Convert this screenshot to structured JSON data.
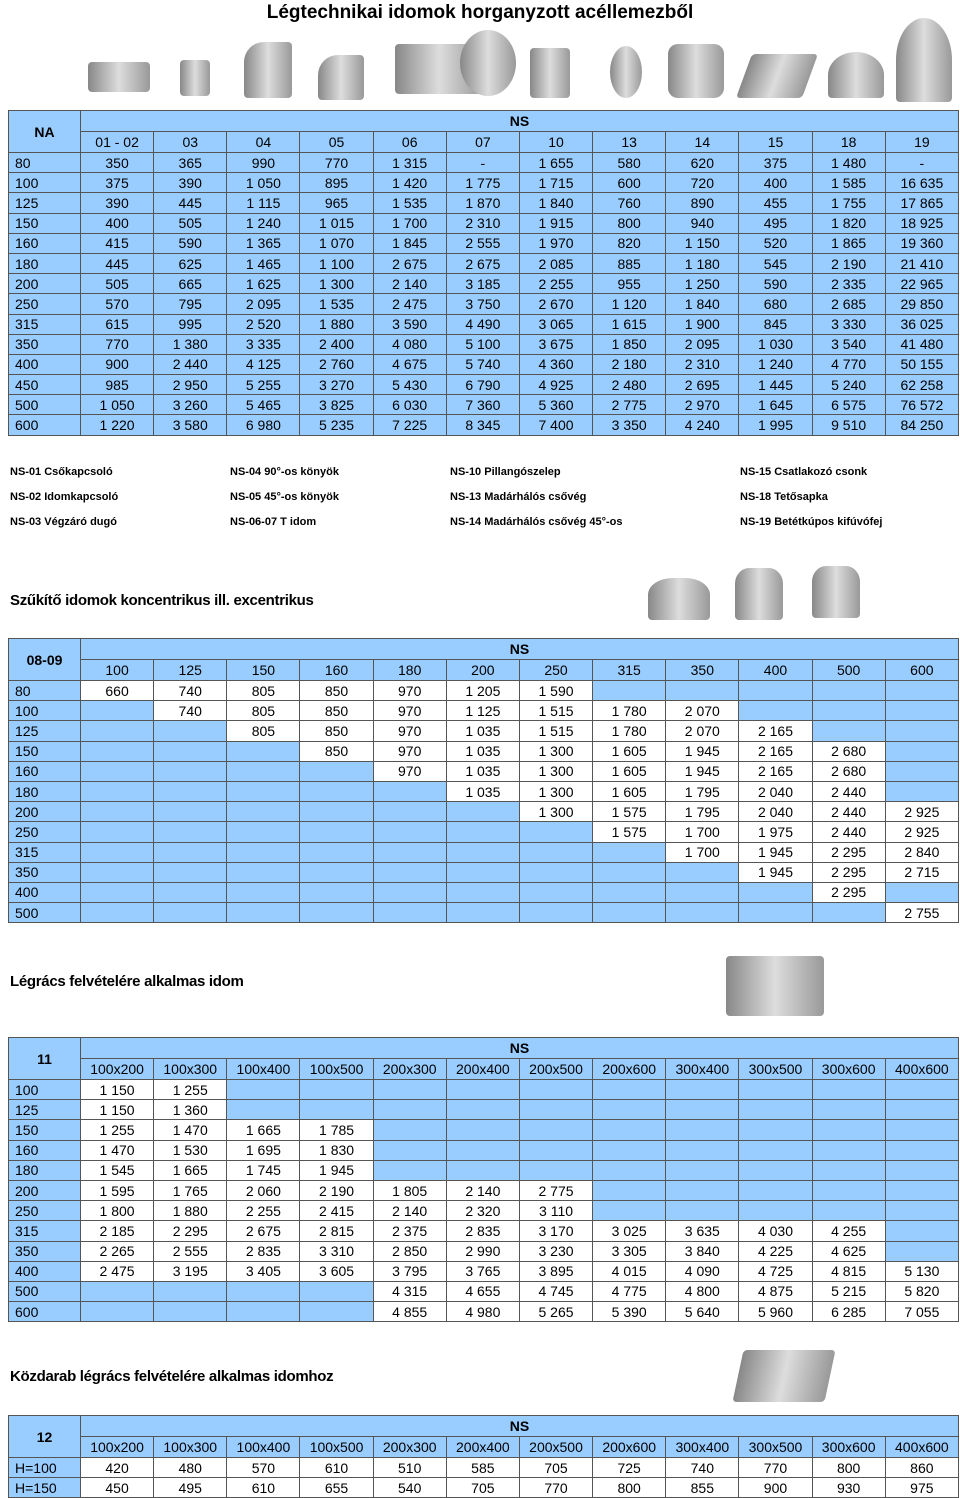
{
  "title": "Légtechnikai idomok horganyzott acéllemezből",
  "legend": [
    "NS-01 Csőkapcsoló",
    "NS-02 Idomkapcsoló",
    "NS-03 Végzáró dugó",
    "NS-04 90°-os könyök",
    "NS-05 45°-os könyök",
    "NS-06-07 T idom",
    "NS-10 Pillangószelep",
    "NS-13 Madárhálós csővég",
    "NS-14 Madárhálós csővég 45°-os",
    "NS-15 Csatlakozó csonk",
    "NS-18 Tetősapka",
    "NS-19 Betétkúpos kifúvófej"
  ],
  "sections": [
    "Szűkítő idomok koncentrikus ill. excentrikus",
    "Légrács felvételére alkalmas idom",
    "Közdarab légrács felvételére alkalmas idomhoz"
  ],
  "tables": [
    {
      "corner": "NA",
      "group": "NS",
      "columns": [
        "01 - 02",
        "03",
        "04",
        "05",
        "06",
        "07",
        "10",
        "13",
        "14",
        "15",
        "18",
        "19"
      ],
      "rows": [
        {
          "label": "80",
          "cells": [
            "350",
            "365",
            "990",
            "770",
            "1 315",
            "-",
            "1 655",
            "580",
            "620",
            "375",
            "1 480",
            "-"
          ]
        },
        {
          "label": "100",
          "cells": [
            "375",
            "390",
            "1 050",
            "895",
            "1 420",
            "1 775",
            "1 715",
            "600",
            "720",
            "400",
            "1 585",
            "16 635"
          ]
        },
        {
          "label": "125",
          "cells": [
            "390",
            "445",
            "1 115",
            "965",
            "1 535",
            "1 870",
            "1 840",
            "760",
            "890",
            "455",
            "1 755",
            "17 865"
          ]
        },
        {
          "label": "150",
          "cells": [
            "400",
            "505",
            "1 240",
            "1 015",
            "1 700",
            "2 310",
            "1 915",
            "800",
            "940",
            "495",
            "1 820",
            "18 925"
          ]
        },
        {
          "label": "160",
          "cells": [
            "415",
            "590",
            "1 365",
            "1 070",
            "1 845",
            "2 555",
            "1 970",
            "820",
            "1 150",
            "520",
            "1 865",
            "19 360"
          ]
        },
        {
          "label": "180",
          "cells": [
            "445",
            "625",
            "1 465",
            "1 100",
            "2 675",
            "2 675",
            "2 085",
            "885",
            "1 180",
            "545",
            "2 190",
            "21 410"
          ]
        },
        {
          "label": "200",
          "cells": [
            "505",
            "665",
            "1 625",
            "1 300",
            "2 140",
            "3 185",
            "2 255",
            "955",
            "1 250",
            "590",
            "2 335",
            "22 965"
          ]
        },
        {
          "label": "250",
          "cells": [
            "570",
            "795",
            "2 095",
            "1 535",
            "2 475",
            "3 750",
            "2 670",
            "1 120",
            "1 840",
            "680",
            "2 685",
            "29 850"
          ]
        },
        {
          "label": "315",
          "cells": [
            "615",
            "995",
            "2 520",
            "1 880",
            "3 590",
            "4 490",
            "3 065",
            "1 615",
            "1 900",
            "845",
            "3 330",
            "36 025"
          ]
        },
        {
          "label": "350",
          "cells": [
            "770",
            "1 380",
            "3 335",
            "2 400",
            "4 080",
            "5 100",
            "3 675",
            "1 850",
            "2 095",
            "1 030",
            "3 540",
            "41 480"
          ]
        },
        {
          "label": "400",
          "cells": [
            "900",
            "2 440",
            "4 125",
            "2 760",
            "4 675",
            "5 740",
            "4 360",
            "2 180",
            "2 310",
            "1 240",
            "4 770",
            "50 155"
          ]
        },
        {
          "label": "450",
          "cells": [
            "985",
            "2 950",
            "5 255",
            "3 270",
            "5 430",
            "6 790",
            "4 925",
            "2 480",
            "2 695",
            "1 445",
            "5 240",
            "62 258"
          ]
        },
        {
          "label": "500",
          "cells": [
            "1 050",
            "3 260",
            "5 465",
            "3 825",
            "6 030",
            "7 360",
            "5 360",
            "2 775",
            "2 970",
            "1 645",
            "6 575",
            "76 572"
          ]
        },
        {
          "label": "600",
          "cells": [
            "1 220",
            "3 580",
            "6 980",
            "5 235",
            "7 225",
            "8 345",
            "7 400",
            "3 350",
            "4 240",
            "1 995",
            "9 510",
            "84 250"
          ]
        }
      ]
    },
    {
      "corner": "08-09",
      "group": "NS",
      "columns": [
        "100",
        "125",
        "150",
        "160",
        "180",
        "200",
        "250",
        "315",
        "350",
        "400",
        "500",
        "600"
      ],
      "rows": [
        {
          "label": "80",
          "cells": [
            "660",
            "740",
            "805",
            "850",
            "970",
            "1 205",
            "1 590",
            null,
            null,
            null,
            null,
            null
          ]
        },
        {
          "label": "100",
          "cells": [
            null,
            "740",
            "805",
            "850",
            "970",
            "1 125",
            "1 515",
            "1 780",
            "2 070",
            null,
            null,
            null
          ]
        },
        {
          "label": "125",
          "cells": [
            null,
            null,
            "805",
            "850",
            "970",
            "1 035",
            "1 515",
            "1 780",
            "2 070",
            "2 165",
            null,
            null
          ]
        },
        {
          "label": "150",
          "cells": [
            null,
            null,
            null,
            "850",
            "970",
            "1 035",
            "1 300",
            "1 605",
            "1 945",
            "2 165",
            "2 680",
            null
          ]
        },
        {
          "label": "160",
          "cells": [
            null,
            null,
            null,
            null,
            "970",
            "1 035",
            "1 300",
            "1 605",
            "1 945",
            "2 165",
            "2 680",
            null
          ]
        },
        {
          "label": "180",
          "cells": [
            null,
            null,
            null,
            null,
            null,
            "1 035",
            "1 300",
            "1 605",
            "1 795",
            "2 040",
            "2 440",
            null
          ]
        },
        {
          "label": "200",
          "cells": [
            null,
            null,
            null,
            null,
            null,
            null,
            "1 300",
            "1 575",
            "1 795",
            "2 040",
            "2 440",
            "2 925"
          ]
        },
        {
          "label": "250",
          "cells": [
            null,
            null,
            null,
            null,
            null,
            null,
            null,
            "1 575",
            "1 700",
            "1 975",
            "2 440",
            "2 925"
          ]
        },
        {
          "label": "315",
          "cells": [
            null,
            null,
            null,
            null,
            null,
            null,
            null,
            null,
            "1 700",
            "1 945",
            "2 295",
            "2 840"
          ]
        },
        {
          "label": "350",
          "cells": [
            null,
            null,
            null,
            null,
            null,
            null,
            null,
            null,
            null,
            "1 945",
            "2 295",
            "2 715"
          ]
        },
        {
          "label": "400",
          "cells": [
            null,
            null,
            null,
            null,
            null,
            null,
            null,
            null,
            null,
            null,
            "2 295",
            null
          ]
        },
        {
          "label": "500",
          "cells": [
            null,
            null,
            null,
            null,
            null,
            null,
            null,
            null,
            null,
            null,
            null,
            "2 755"
          ]
        }
      ]
    },
    {
      "corner": "11",
      "group": "NS",
      "columns": [
        "100x200",
        "100x300",
        "100x400",
        "100x500",
        "200x300",
        "200x400",
        "200x500",
        "200x600",
        "300x400",
        "300x500",
        "300x600",
        "400x600"
      ],
      "rows": [
        {
          "label": "100",
          "cells": [
            "1 150",
            "1 255",
            null,
            null,
            null,
            null,
            null,
            null,
            null,
            null,
            null,
            null
          ]
        },
        {
          "label": "125",
          "cells": [
            "1 150",
            "1 360",
            null,
            null,
            null,
            null,
            null,
            null,
            null,
            null,
            null,
            null
          ]
        },
        {
          "label": "150",
          "cells": [
            "1 255",
            "1 470",
            "1 665",
            "1 785",
            null,
            null,
            null,
            null,
            null,
            null,
            null,
            null
          ]
        },
        {
          "label": "160",
          "cells": [
            "1 470",
            "1 530",
            "1 695",
            "1 830",
            null,
            null,
            null,
            null,
            null,
            null,
            null,
            null
          ]
        },
        {
          "label": "180",
          "cells": [
            "1 545",
            "1 665",
            "1 745",
            "1 945",
            null,
            null,
            null,
            null,
            null,
            null,
            null,
            null
          ]
        },
        {
          "label": "200",
          "cells": [
            "1 595",
            "1 765",
            "2 060",
            "2 190",
            "1 805",
            "2 140",
            "2 775",
            null,
            null,
            null,
            null,
            null
          ]
        },
        {
          "label": "250",
          "cells": [
            "1 800",
            "1 880",
            "2 255",
            "2 415",
            "2 140",
            "2 320",
            "3 110",
            null,
            null,
            null,
            null,
            null
          ]
        },
        {
          "label": "315",
          "cells": [
            "2 185",
            "2 295",
            "2 675",
            "2 815",
            "2 375",
            "2 835",
            "3 170",
            "3 025",
            "3 635",
            "4 030",
            "4 255",
            null
          ]
        },
        {
          "label": "350",
          "cells": [
            "2 265",
            "2 555",
            "2 835",
            "3 310",
            "2 850",
            "2 990",
            "3 230",
            "3 305",
            "3 840",
            "4 225",
            "4 625",
            null
          ]
        },
        {
          "label": "400",
          "cells": [
            "2 475",
            "3 195",
            "3 405",
            "3 605",
            "3 795",
            "3 765",
            "3 895",
            "4 015",
            "4 090",
            "4 725",
            "4 815",
            "5 130"
          ]
        },
        {
          "label": "500",
          "cells": [
            null,
            null,
            null,
            null,
            "4 315",
            "4 655",
            "4 745",
            "4 775",
            "4 800",
            "4 875",
            "5 215",
            "5 820"
          ]
        },
        {
          "label": "600",
          "cells": [
            null,
            null,
            null,
            null,
            "4 855",
            "4 980",
            "5 265",
            "5 390",
            "5 640",
            "5 960",
            "6 285",
            "7 055"
          ]
        }
      ]
    },
    {
      "corner": "12",
      "group": "NS",
      "columns": [
        "100x200",
        "100x300",
        "100x400",
        "100x500",
        "200x300",
        "200x400",
        "200x500",
        "200x600",
        "300x400",
        "300x500",
        "300x600",
        "400x600"
      ],
      "rows": [
        {
          "label": "H=100",
          "cells": [
            "420",
            "480",
            "570",
            "610",
            "510",
            "585",
            "705",
            "725",
            "740",
            "770",
            "800",
            "860"
          ]
        },
        {
          "label": "H=150",
          "cells": [
            "450",
            "495",
            "610",
            "655",
            "540",
            "705",
            "770",
            "800",
            "855",
            "900",
            "930",
            "975"
          ]
        }
      ]
    }
  ]
}
